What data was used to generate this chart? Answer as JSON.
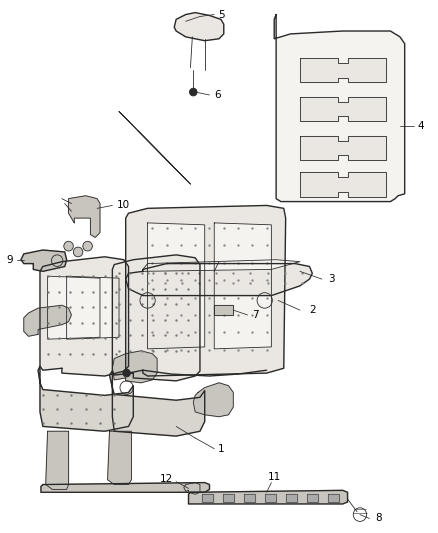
{
  "background_color": "#ffffff",
  "line_color": "#2a2a2a",
  "fig_width": 4.38,
  "fig_height": 5.33,
  "dpi": 100,
  "label_fontsize": 7.5,
  "lw_main": 1.0,
  "lw_thin": 0.6,
  "fill_light": "#f5f3f0",
  "fill_mid": "#eae7e2",
  "fill_dark": "#d8d4ce",
  "fill_metal": "#c8c5bf"
}
